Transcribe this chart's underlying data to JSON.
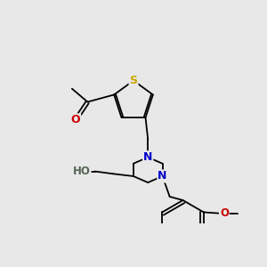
{
  "background_color": "#e8e8e8",
  "bond_color": "#000000",
  "atom_colors": {
    "S": "#ccaa00",
    "O": "#cc0000",
    "N": "#0000cc",
    "H": "#556655",
    "C": "#000000"
  },
  "figsize": [
    3.0,
    3.0
  ],
  "dpi": 100
}
